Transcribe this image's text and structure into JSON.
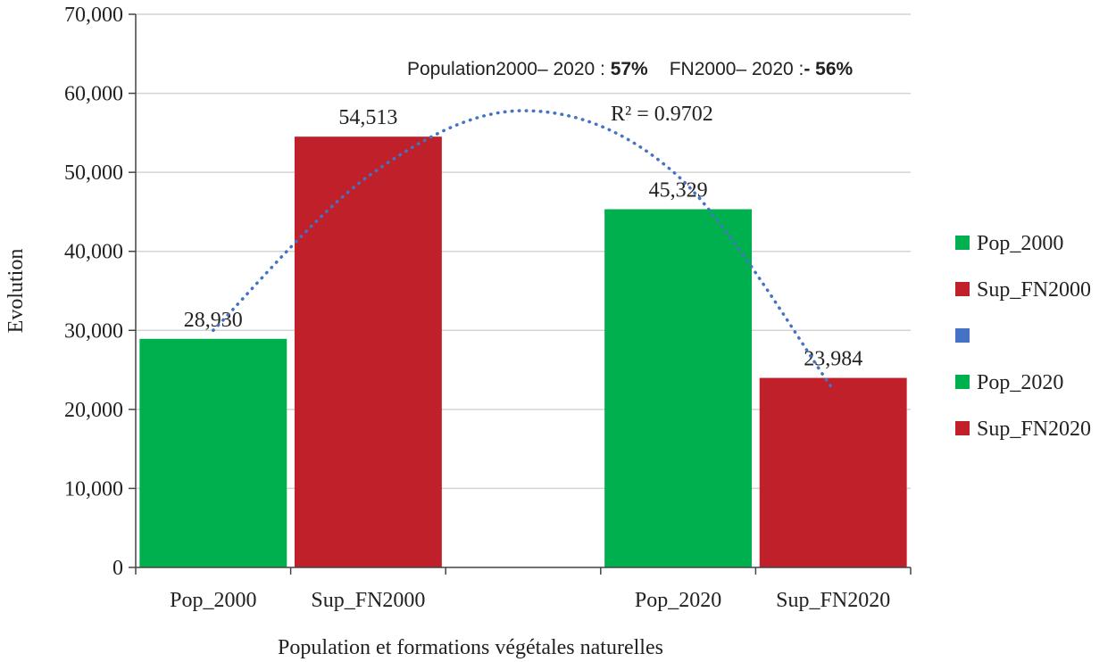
{
  "chart_data": {
    "type": "bar",
    "categories": [
      "Pop_2000",
      "Sup_FN2000",
      "",
      "Pop_2020",
      "Sup_FN2020"
    ],
    "values": [
      28930,
      54513,
      null,
      45329,
      23984
    ],
    "value_labels": [
      "28,930",
      "54,513",
      "",
      "45,329",
      "23,984"
    ],
    "bar_colors": [
      "#00b04f",
      "#c0202a",
      "#4472c4",
      "#00b04f",
      "#c0202a"
    ],
    "ylabel": "Evolution",
    "xlabel": "Population et formations végétales naturelles",
    "ylim": [
      0,
      70000
    ],
    "yticks": [
      "0",
      "10,000",
      "20,000",
      "30,000",
      "40,000",
      "50,000",
      "60,000",
      "70,000"
    ],
    "yticks_values": [
      0,
      10000,
      20000,
      30000,
      40000,
      50000,
      60000,
      70000
    ],
    "grid": true,
    "legend_position": "right",
    "legend": [
      {
        "label": "Pop_2000",
        "color": "#00b04f"
      },
      {
        "label": "Sup_FN2000",
        "color": "#c0202a"
      },
      {
        "label": "",
        "color": "#4472c4"
      },
      {
        "label": "Pop_2020",
        "color": "#00b04f"
      },
      {
        "label": "Sup_FN2020",
        "color": "#c0202a"
      }
    ],
    "trendline": {
      "type": "polynomial",
      "color": "#4472c4",
      "style": "dotted",
      "r2_label": "R² = 0.9702",
      "points": [
        [
          0,
          30000
        ],
        [
          1.0,
          49500
        ],
        [
          2.0,
          57800
        ],
        [
          3.0,
          49500
        ],
        [
          4.0,
          22500
        ]
      ]
    },
    "annotation": {
      "pop_label": "Population2000– 2020 : ",
      "pop_value": "57%",
      "fn_label": "FN2000– 2020 :",
      "fn_value": "- 56%"
    }
  }
}
